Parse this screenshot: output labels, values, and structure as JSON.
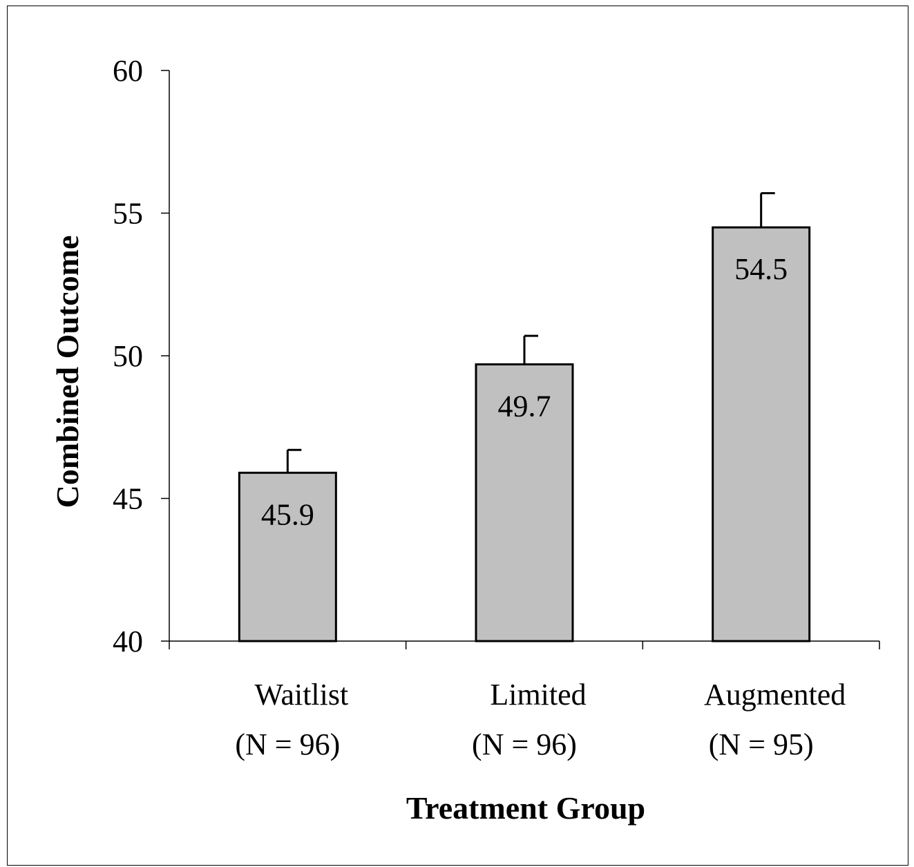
{
  "chart_data": {
    "type": "bar",
    "title": "",
    "xlabel": "Treatment Group",
    "ylabel": "Combined Outcome",
    "ylim": [
      40,
      60
    ],
    "yticks": [
      40,
      45,
      50,
      55,
      60
    ],
    "categories": [
      {
        "name": "Waitlist",
        "n_label": "(N = 96)"
      },
      {
        "name": "Limited",
        "n_label": "(N = 96)"
      },
      {
        "name": "Augmented",
        "n_label": "(N = 95)"
      }
    ],
    "values": [
      45.9,
      49.7,
      54.5
    ],
    "value_labels": [
      "45.9",
      "49.7",
      "54.5"
    ],
    "error_upper": [
      46.7,
      50.7,
      55.7
    ],
    "bar_color": "#c0c0c0",
    "grid": false,
    "legend": "none"
  }
}
